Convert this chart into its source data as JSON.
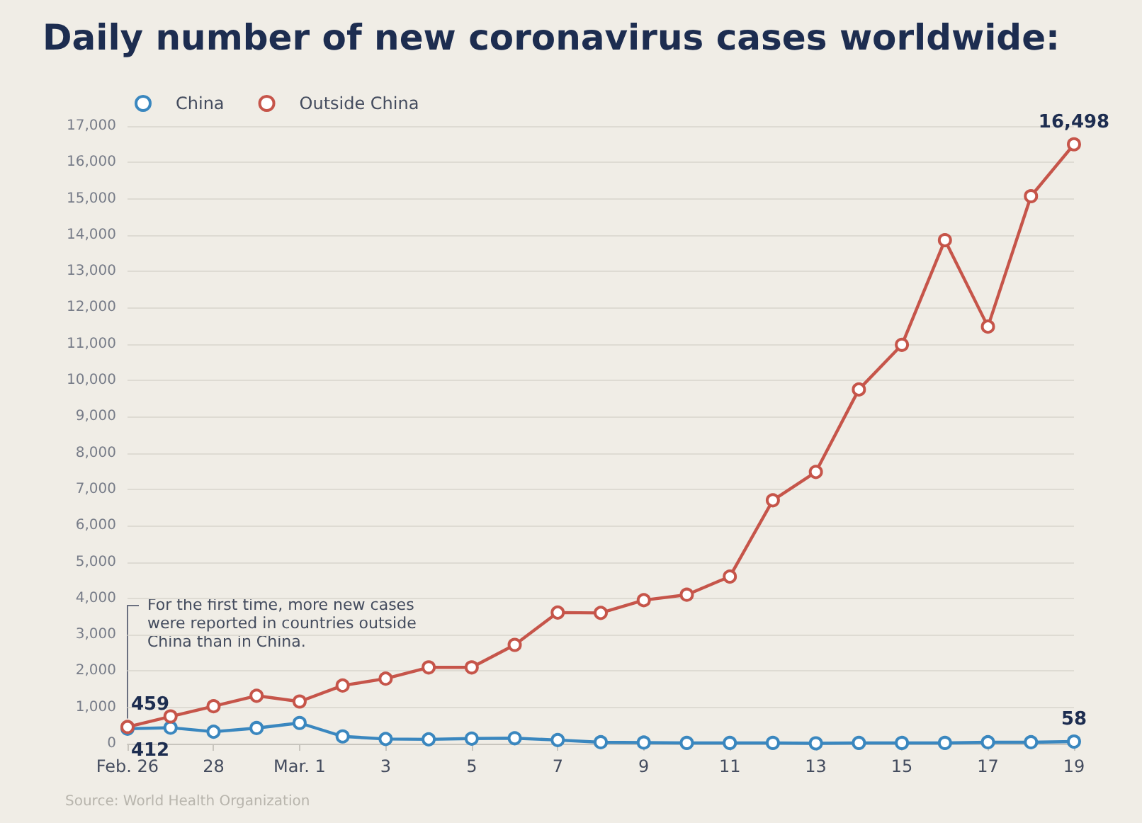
{
  "chart_data": {
    "type": "line",
    "title": "Daily number of new coronavirus cases worldwide:",
    "categories": [
      "Feb. 26",
      null,
      "28",
      null,
      "Mar. 1",
      null,
      "3",
      null,
      "5",
      null,
      "7",
      null,
      "9",
      null,
      "11",
      null,
      "13",
      null,
      "15",
      null,
      "17",
      null,
      "19"
    ],
    "series": [
      {
        "name": "China",
        "color": "#3a87bf",
        "values": [
          412,
          440,
          330,
          430,
          570,
          200,
          130,
          120,
          140,
          150,
          100,
          40,
          30,
          20,
          20,
          20,
          10,
          20,
          20,
          20,
          40,
          40,
          58
        ],
        "value_labels": [
          "412",
          null,
          null,
          null,
          null,
          null,
          null,
          null,
          null,
          null,
          null,
          null,
          null,
          null,
          null,
          null,
          null,
          null,
          null,
          null,
          null,
          null,
          "58"
        ]
      },
      {
        "name": "Outside China",
        "color": "#c6554a",
        "values": [
          459,
          750,
          1030,
          1320,
          1160,
          1600,
          1790,
          2100,
          2100,
          2720,
          3610,
          3600,
          3950,
          4100,
          4600,
          6700,
          7480,
          9750,
          10980,
          13860,
          11480,
          15070,
          16498
        ],
        "value_labels": [
          "459",
          null,
          null,
          null,
          null,
          null,
          null,
          null,
          null,
          null,
          null,
          null,
          null,
          null,
          null,
          null,
          null,
          null,
          null,
          null,
          null,
          null,
          "16,498"
        ]
      }
    ],
    "ylim": [
      0,
      17000
    ],
    "yticks": [
      0,
      {
        "value": 1000,
        "label": "1,000"
      },
      {
        "value": 2000,
        "label": "2,000"
      },
      {
        "value": 3000,
        "label": "3,000"
      },
      {
        "value": 4000,
        "label": "4,000"
      },
      {
        "value": 5000,
        "label": "5,000"
      },
      {
        "value": 6000,
        "label": "6,000"
      },
      {
        "value": 7000,
        "label": "7,000"
      },
      {
        "value": 8000,
        "label": "8,000"
      },
      {
        "value": 9000,
        "label": "9,000"
      },
      {
        "value": 10000,
        "label": "10,000"
      },
      {
        "value": 11000,
        "label": "11,000"
      },
      {
        "value": 12000,
        "label": "12,000"
      },
      {
        "value": 13000,
        "label": "13,000"
      },
      {
        "value": 14000,
        "label": "14,000"
      },
      {
        "value": 15000,
        "label": "15,000"
      },
      {
        "value": 16000,
        "label": "16,000"
      },
      {
        "value": 17000,
        "label": "17,000"
      }
    ],
    "grid": "y",
    "legend": "top left",
    "marker": "circle",
    "line_style": "solid",
    "annotations": [
      {
        "text": "For the first time, more new cases were reported in countries outside China than in China.",
        "x": "Feb. 26",
        "y": 459
      },
      "Source: World Health Organization"
    ]
  }
}
